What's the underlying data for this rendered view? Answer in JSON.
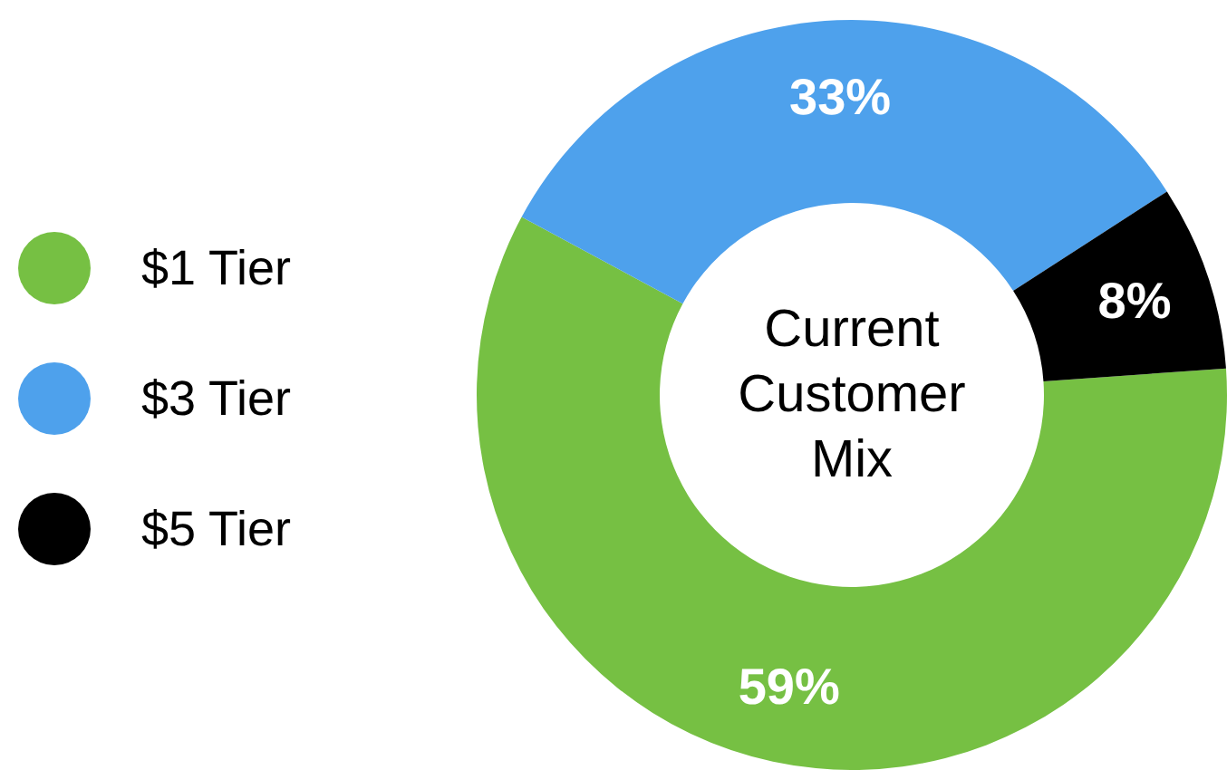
{
  "chart_data": {
    "type": "donut",
    "title": "Current Customer Mix",
    "categories": [
      "$1 Tier",
      "$3 Tier",
      "$5 Tier"
    ],
    "values": [
      59,
      33,
      8
    ],
    "colors": [
      "#76c043",
      "#4ea1ec",
      "#000000"
    ],
    "value_labels": [
      "59%",
      "33%",
      "8%"
    ],
    "legend": "left"
  }
}
